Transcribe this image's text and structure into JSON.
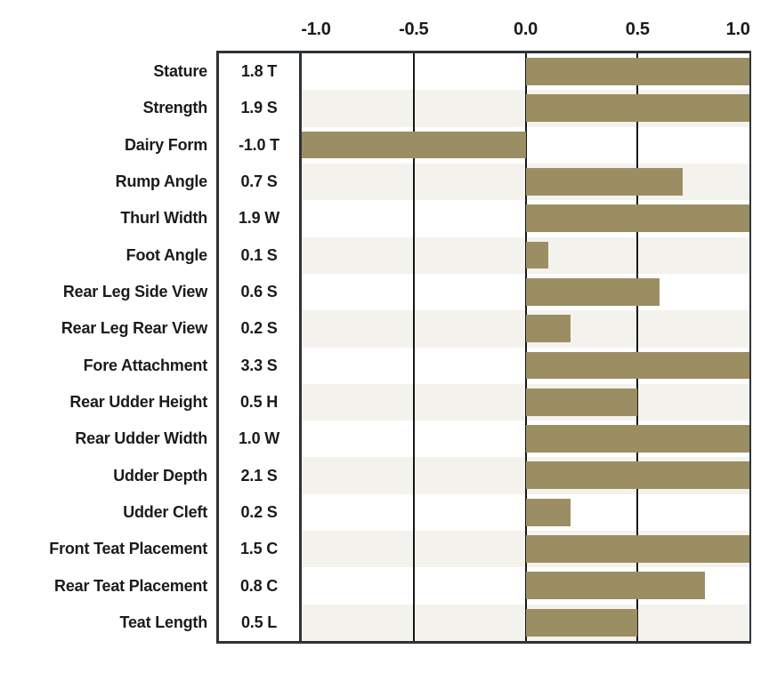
{
  "chart_data": {
    "type": "bar",
    "orientation": "horizontal",
    "xlim": [
      -1.0,
      1.0
    ],
    "x_ticks": [
      "-1.0",
      "-0.5",
      "0.0",
      "0.5",
      "1.0"
    ],
    "gridline_values": [
      -0.5,
      0.0,
      0.5
    ],
    "bars_clamped_to_axis_range": true,
    "colors": {
      "bar": "#9b8e63",
      "stripe": "#f4f2ec",
      "border": "#2e3338",
      "gridline": "#15181a",
      "text": "#1b1b1b",
      "background": "#ffffff"
    },
    "rows": [
      {
        "label": "Stature",
        "value_text": "1.8 T",
        "value": 1.8
      },
      {
        "label": "Strength",
        "value_text": "1.9 S",
        "value": 1.9
      },
      {
        "label": "Dairy Form",
        "value_text": "-1.0 T",
        "value": -1.0
      },
      {
        "label": "Rump Angle",
        "value_text": "0.7 S",
        "value": 0.7
      },
      {
        "label": "Thurl Width",
        "value_text": "1.9 W",
        "value": 1.9
      },
      {
        "label": "Foot Angle",
        "value_text": "0.1 S",
        "value": 0.1
      },
      {
        "label": "Rear Leg Side View",
        "value_text": "0.6 S",
        "value": 0.6
      },
      {
        "label": "Rear Leg Rear View",
        "value_text": "0.2 S",
        "value": 0.2
      },
      {
        "label": "Fore Attachment",
        "value_text": "3.3 S",
        "value": 3.3
      },
      {
        "label": "Rear Udder Height",
        "value_text": "0.5 H",
        "value": 0.5
      },
      {
        "label": "Rear Udder Width",
        "value_text": "1.0 W",
        "value": 1.0
      },
      {
        "label": "Udder Depth",
        "value_text": "2.1 S",
        "value": 2.1
      },
      {
        "label": "Udder Cleft",
        "value_text": "0.2 S",
        "value": 0.2
      },
      {
        "label": "Front Teat Placement",
        "value_text": "1.5 C",
        "value": 1.5
      },
      {
        "label": "Rear Teat Placement",
        "value_text": "0.8 C",
        "value": 0.8
      },
      {
        "label": "Teat Length",
        "value_text": "0.5 L",
        "value": 0.5
      }
    ]
  }
}
